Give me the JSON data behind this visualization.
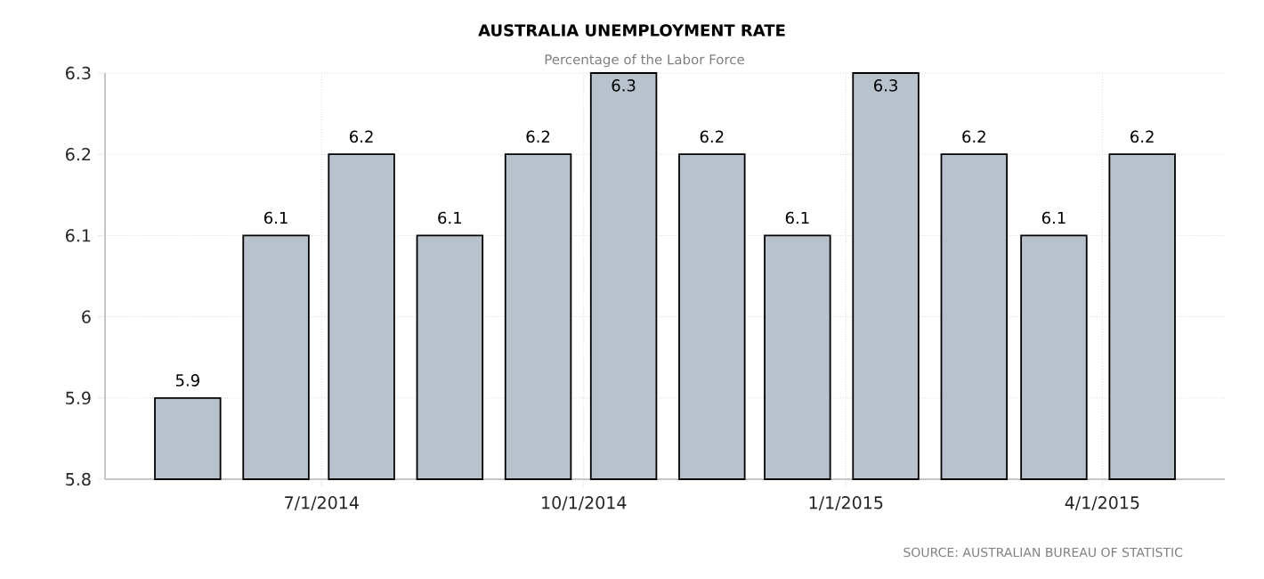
{
  "chart_data": {
    "type": "bar",
    "title": "AUSTRALIA UNEMPLOYMENT RATE",
    "subtitle": "Percentage of the Labor Force",
    "x": [
      "2014-05-15",
      "2014-06-15",
      "2014-07-15",
      "2014-08-15",
      "2014-09-15",
      "2014-10-15",
      "2014-11-15",
      "2014-12-15",
      "2015-01-15",
      "2015-02-15",
      "2015-03-15",
      "2015-04-15"
    ],
    "values": [
      5.9,
      6.1,
      6.2,
      6.1,
      6.2,
      6.3,
      6.2,
      6.1,
      6.3,
      6.2,
      6.1,
      6.2
    ],
    "color": "#b8c2cd",
    "xlim": [
      "2014-04-16",
      "2015-05-14"
    ],
    "xticks": [
      {
        "value": "2014-07-01",
        "label": "7/1/2014"
      },
      {
        "value": "2014-10-01",
        "label": "10/1/2014"
      },
      {
        "value": "2015-01-01",
        "label": "1/1/2015"
      },
      {
        "value": "2015-04-01",
        "label": "4/1/2015"
      }
    ],
    "ylim": [
      5.8,
      6.3
    ],
    "yticks": [
      5.8,
      5.9,
      6,
      6.1,
      6.2,
      6.3
    ],
    "grid": true,
    "data_labels": true,
    "annotations": [
      "SOURCE: AUSTRALIAN BUREAU OF STATISTIC"
    ]
  }
}
